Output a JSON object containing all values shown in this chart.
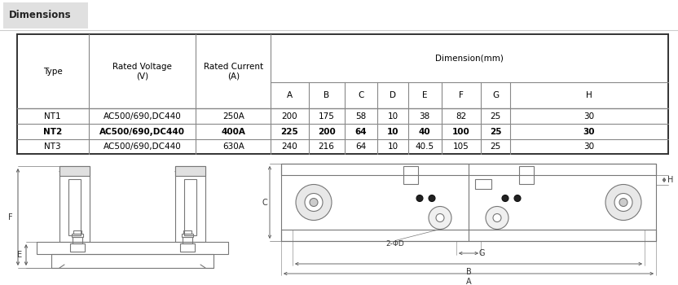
{
  "title": "Dimensions",
  "background_color": "#ffffff",
  "title_bg_color": "#e0e0e0",
  "table": {
    "col_headers": [
      "Type",
      "Rated Voltage\n(V)",
      "Rated Current\n(A)",
      "A",
      "B",
      "C",
      "D",
      "E",
      "F",
      "G",
      "H"
    ],
    "dim_header": "Dimension(mm)",
    "rows": [
      [
        "NT1",
        "AC500/690,DC440",
        "250A",
        "200",
        "175",
        "58",
        "10",
        "38",
        "82",
        "25",
        "30"
      ],
      [
        "NT2",
        "AC500/690,DC440",
        "400A",
        "225",
        "200",
        "64",
        "10",
        "40",
        "100",
        "25",
        "30"
      ],
      [
        "NT3",
        "AC500/690,DC440",
        "630A",
        "240",
        "216",
        "64",
        "10",
        "40.5",
        "105",
        "25",
        "30"
      ]
    ],
    "bold_rows": [
      1
    ],
    "line_color": "#888888",
    "header_line_color": "#333333"
  }
}
